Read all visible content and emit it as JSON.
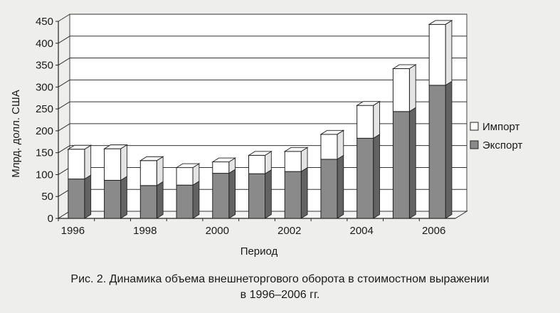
{
  "chart_data": {
    "type": "bar",
    "stacked": true,
    "xlabel": "Период",
    "ylabel": "Млрд. долл. США",
    "ylim": [
      0,
      450
    ],
    "yticks": [
      0,
      50,
      100,
      150,
      200,
      250,
      300,
      350,
      400,
      450
    ],
    "categories": [
      "1996",
      "1997",
      "1998",
      "1999",
      "2000",
      "2001",
      "2002",
      "2003",
      "2004",
      "2005",
      "2006"
    ],
    "xtick_labels": [
      "1996",
      "",
      "1998",
      "",
      "2000",
      "",
      "2002",
      "",
      "2004",
      "",
      "2006"
    ],
    "series": [
      {
        "name": "Экспорт",
        "color": "#8a8a8a",
        "values": [
          90,
          87,
          75,
          76,
          103,
          102,
          107,
          135,
          183,
          244,
          304
        ]
      },
      {
        "name": "Импорт",
        "color": "#ffffff",
        "values": [
          68,
          72,
          57,
          40,
          26,
          42,
          46,
          57,
          75,
          98,
          139
        ]
      }
    ],
    "legend": {
      "position": "right",
      "entries": [
        "Импорт",
        "Экспорт"
      ]
    },
    "grid": true,
    "three_d": true
  },
  "caption": {
    "line1": "Рис. 2. Динамика объема внешнеторгового оборота в стоимостном выражении",
    "line2": "в 1996–2006 гг."
  }
}
